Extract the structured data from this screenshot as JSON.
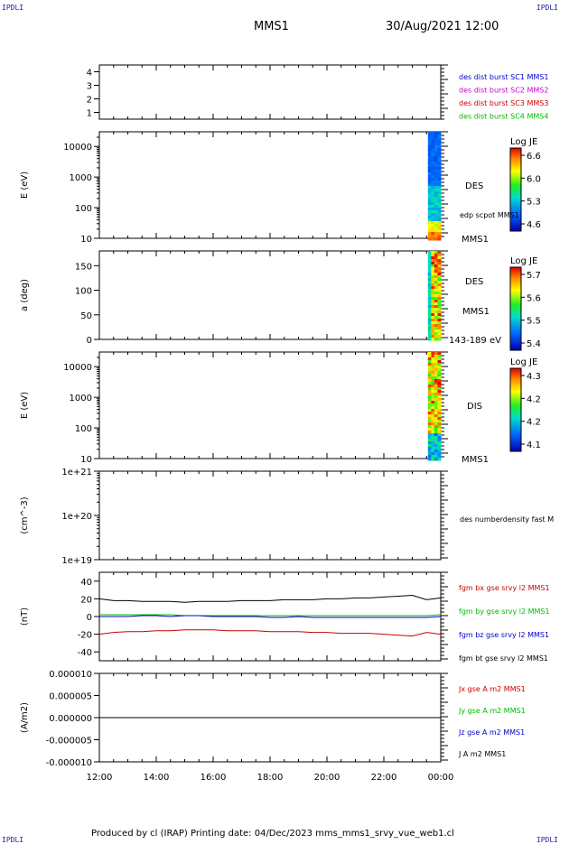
{
  "header": {
    "corner_left": "IPDLI",
    "corner_right": "IPDLI",
    "mission": "MMS1",
    "datetime": "30/Aug/2021 12:00"
  },
  "footer": {
    "text": "Produced by cl (IRAP)   Printing date: 04/Dec/2023   mms_mms1_srvy_vue_web1.cl",
    "corner_left": "IPDLI",
    "corner_right": "IPDLI"
  },
  "colors": {
    "blue": "#0000cc",
    "magenta": "#cc00cc",
    "red": "#cc0000",
    "green": "#00bb00",
    "black": "#000000"
  },
  "chart_data": [
    {
      "type": "line",
      "id": "dist",
      "ylim": [
        0.5,
        4.5
      ],
      "yticks": [
        "1",
        "2",
        "3",
        "4"
      ],
      "ylabel": "",
      "legend": [
        {
          "name": "des dist burst SC1 MMS1",
          "color": "#0000cc"
        },
        {
          "name": "des dist burst SC2 MMS2",
          "color": "#cc00cc"
        },
        {
          "name": "des dist burst SC3 MMS3",
          "color": "#cc0000"
        },
        {
          "name": "des dist burst SC4 MMS4",
          "color": "#00bb00"
        }
      ]
    },
    {
      "type": "heatmap",
      "id": "des_energy",
      "ylabel": "E (eV)",
      "yscale": "log",
      "ylim": [
        10,
        30000
      ],
      "yticks": [
        "10",
        "100",
        "1000",
        "10000"
      ],
      "side_labels": [
        "DES",
        "edp scpot MMS1",
        "MMS1"
      ],
      "colorbar": {
        "title": "Log JE",
        "ticks": [
          "6.6",
          "6.0",
          "5.3",
          "4.6"
        ]
      }
    },
    {
      "type": "heatmap",
      "id": "des_pitch",
      "ylabel": "a (deg)",
      "ylim": [
        0,
        180
      ],
      "yticks": [
        "0",
        "50",
        "100",
        "150"
      ],
      "side_labels": [
        "DES",
        "MMS1",
        "143-189 eV"
      ],
      "colorbar": {
        "title": "Log JE",
        "ticks": [
          "5.7",
          "5.6",
          "5.5",
          "5.4"
        ]
      }
    },
    {
      "type": "heatmap",
      "id": "dis_energy",
      "ylabel": "E (eV)",
      "yscale": "log",
      "ylim": [
        10,
        30000
      ],
      "yticks": [
        "10",
        "100",
        "1000",
        "10000"
      ],
      "side_labels": [
        "DIS",
        "MMS1"
      ],
      "colorbar": {
        "title": "Log JE",
        "ticks": [
          "4.3",
          "4.2",
          "4.2",
          "4.1"
        ]
      }
    },
    {
      "type": "line",
      "id": "density",
      "ylabel": "(cm^-3)",
      "yscale": "log",
      "ylim": [
        1e+19,
        1e+21
      ],
      "yticks": [
        "1e+19",
        "1e+20",
        "1e+21"
      ],
      "legend": [
        {
          "name": "des numberdensity fast M",
          "color": "#000000"
        }
      ]
    },
    {
      "type": "line",
      "id": "fgm",
      "ylabel": "(nT)",
      "ylim": [
        -50,
        50
      ],
      "yticks": [
        "-40",
        "-20",
        "0",
        "20",
        "40"
      ],
      "x": [
        12,
        12.5,
        13,
        13.5,
        14,
        14.5,
        15,
        15.5,
        16,
        16.5,
        17,
        17.5,
        18,
        18.5,
        19,
        19.5,
        20,
        20.5,
        21,
        21.5,
        22,
        22.5,
        23,
        23.5,
        24
      ],
      "series": [
        {
          "name": "fgm bx gse srvy l2 MMS1",
          "color": "#cc0000",
          "values": [
            -20,
            -18,
            -17,
            -17,
            -16,
            -16,
            -15,
            -15,
            -15,
            -16,
            -16,
            -16,
            -17,
            -17,
            -17,
            -18,
            -18,
            -19,
            -19,
            -19,
            -20,
            -21,
            -22,
            -18,
            -20
          ]
        },
        {
          "name": "fgm by gse srvy l2 MMS1",
          "color": "#00bb00",
          "values": [
            2,
            2,
            2,
            2,
            2,
            2,
            1,
            1,
            1,
            1,
            1,
            1,
            1,
            1,
            1,
            1,
            1,
            1,
            1,
            1,
            1,
            1,
            1,
            1,
            2
          ]
        },
        {
          "name": "fgm bz gse srvy l2 MMS1",
          "color": "#0000cc",
          "values": [
            0,
            0,
            0,
            1,
            1,
            0,
            1,
            1,
            0,
            0,
            0,
            0,
            -1,
            -1,
            0,
            -1,
            -1,
            -1,
            -1,
            -1,
            -1,
            -1,
            -1,
            -1,
            0
          ]
        },
        {
          "name": "fgm bt gse srvy l2 MMS1",
          "color": "#000000",
          "values": [
            20,
            18,
            18,
            17,
            17,
            17,
            16,
            17,
            17,
            17,
            18,
            18,
            18,
            19,
            19,
            19,
            20,
            20,
            21,
            21,
            22,
            23,
            24,
            19,
            21
          ]
        }
      ]
    },
    {
      "type": "line",
      "id": "current",
      "ylabel": "(A/m2)",
      "ylim": [
        -1e-05,
        1e-05
      ],
      "yticks": [
        "-0.000010",
        "-0.000005",
        "0.000000",
        "0.000005",
        "0.000010"
      ],
      "legend": [
        {
          "name": "Jx gse A m2 MMS1",
          "color": "#cc0000"
        },
        {
          "name": "Jy gse A m2 MMS1",
          "color": "#00bb00"
        },
        {
          "name": "Jz gse A m2 MMS1",
          "color": "#0000cc"
        },
        {
          "name": "J A m2 MMS1",
          "color": "#000000"
        }
      ],
      "x": [
        12,
        24
      ],
      "values": [
        0,
        0
      ]
    }
  ],
  "time_axis": {
    "ticks": [
      "12:00",
      "14:00",
      "16:00",
      "18:00",
      "20:00",
      "22:00",
      "00:00"
    ],
    "xlim": [
      12,
      24
    ]
  }
}
